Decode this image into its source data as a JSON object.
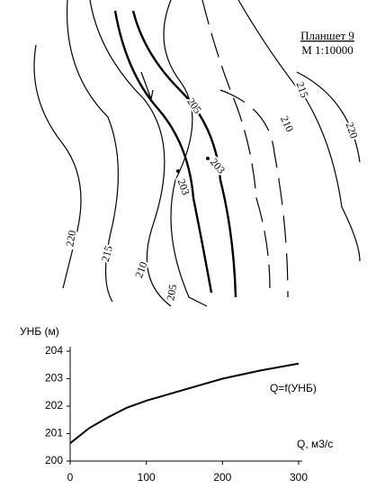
{
  "map": {
    "title": "Планшет 9",
    "scale": "М 1:10000",
    "contour_labels": [
      "220",
      "215",
      "210",
      "205",
      "205",
      "203",
      "203",
      "210",
      "215",
      "220"
    ]
  },
  "chart_data": {
    "type": "line",
    "x_label": "Q, м3/с",
    "y_label": "УНБ (м)",
    "annotation": "Q=f(УНБ)",
    "x": [
      0,
      25,
      50,
      75,
      100,
      150,
      200,
      250,
      300
    ],
    "series": [
      {
        "name": "Q=f(УНБ)",
        "color": "#000000",
        "values": [
          200.65,
          201.2,
          201.6,
          201.95,
          202.2,
          202.6,
          203.0,
          203.3,
          203.55
        ]
      }
    ],
    "xlim": [
      0,
      300
    ],
    "ylim": [
      200,
      204
    ],
    "xticks": [
      0,
      100,
      200,
      300
    ],
    "yticks": [
      200,
      201,
      202,
      203,
      204
    ]
  }
}
